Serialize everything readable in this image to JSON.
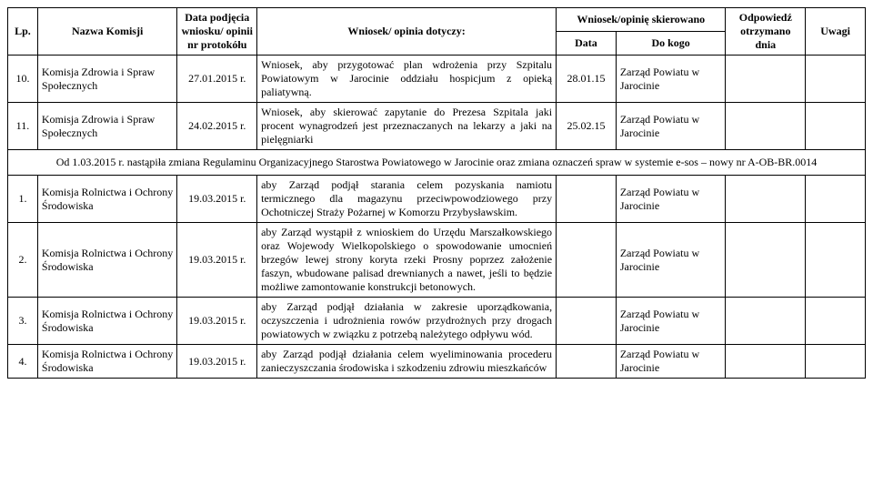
{
  "header": {
    "lp": "Lp.",
    "komisja": "Nazwa Komisji",
    "data_podjecia": "Data podjęcia wniosku/ opinii nr protokółu",
    "wniosek": "Wniosek/ opinia dotyczy:",
    "skierowano": "Wniosek/opinię skierowano",
    "data": "Data",
    "do_kogo": "Do kogo",
    "odpowiedz": "Odpowiedź otrzymano dnia",
    "uwagi": "Uwagi"
  },
  "rows_top": [
    {
      "lp": "10.",
      "komisja": "Komisja Zdrowia i Spraw Społecznych",
      "data_podj": "27.01.2015 r.",
      "wniosek": "Wniosek, aby przygotować plan wdrożenia przy Szpitalu Powiatowym w Jarocinie oddziału hospicjum z opieką paliatywną.",
      "data": "28.01.15",
      "do_kogo": "Zarząd Powiatu w Jarocinie",
      "odp": "",
      "uwagi": ""
    },
    {
      "lp": "11.",
      "komisja": "Komisja Zdrowia i Spraw Społecznych",
      "data_podj": "24.02.2015 r.",
      "wniosek": "Wniosek, aby skierować zapytanie do Prezesa Szpitala jaki procent wynagrodzeń jest przeznaczanych na lekarzy a jaki na pielęgniarki",
      "data": "25.02.15",
      "do_kogo": "Zarząd Powiatu w Jarocinie",
      "odp": "",
      "uwagi": ""
    }
  ],
  "note": "Od 1.03.2015 r. nastąpiła zmiana Regulaminu Organizacyjnego Starostwa Powiatowego w Jarocinie oraz zmiana oznaczeń spraw w systemie e-sos – nowy nr A-OB-BR.0014",
  "rows_bottom": [
    {
      "lp": "1.",
      "komisja": "Komisja Rolnictwa i Ochrony Środowiska",
      "data_podj": "19.03.2015 r.",
      "wniosek": "aby Zarząd podjął starania celem pozyskania namiotu termicznego dla magazynu przeciwpowodziowego przy Ochotniczej Straży Pożarnej w Komorzu Przybysławskim.",
      "data": "",
      "do_kogo": "Zarząd Powiatu w Jarocinie",
      "odp": "",
      "uwagi": ""
    },
    {
      "lp": "2.",
      "komisja": "Komisja Rolnictwa i Ochrony Środowiska",
      "data_podj": "19.03.2015 r.",
      "wniosek": "aby Zarząd wystąpił z wnioskiem do Urzędu Marszałkowskiego oraz Wojewody Wielkopolskiego o spowodowanie umocnień brzegów lewej strony koryta rzeki Prosny poprzez założenie faszyn, wbudowane palisad drewnianych a nawet, jeśli to będzie możliwe zamontowanie konstrukcji betonowych.",
      "data": "",
      "do_kogo": "Zarząd Powiatu w Jarocinie",
      "odp": "",
      "uwagi": ""
    },
    {
      "lp": "3.",
      "komisja": "Komisja Rolnictwa i Ochrony Środowiska",
      "data_podj": "19.03.2015 r.",
      "wniosek": "aby Zarząd podjął działania w zakresie uporządkowania, oczyszczenia i udrożnienia rowów przydrożnych przy drogach powiatowych w związku z potrzebą należytego odpływu wód.",
      "data": "",
      "do_kogo": "Zarząd Powiatu w Jarocinie",
      "odp": "",
      "uwagi": ""
    },
    {
      "lp": "4.",
      "komisja": "Komisja Rolnictwa i Ochrony Środowiska",
      "data_podj": "19.03.2015 r.",
      "wniosek": "aby Zarząd podjął działania celem wyeliminowania procederu zanieczyszczania środowiska i szkodzeniu zdrowiu mieszkańców",
      "data": "",
      "do_kogo": "Zarząd Powiatu w Jarocinie",
      "odp": "",
      "uwagi": ""
    }
  ]
}
